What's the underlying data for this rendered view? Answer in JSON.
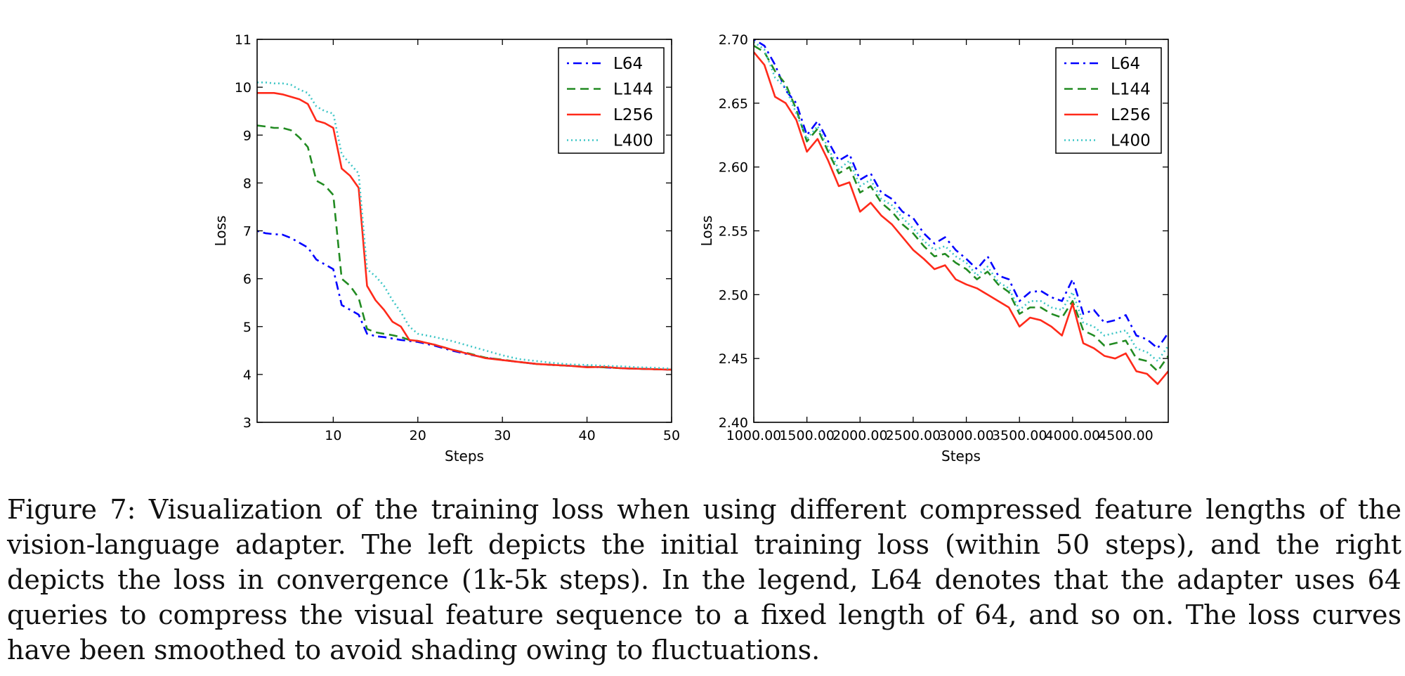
{
  "chart_data": [
    {
      "type": "line",
      "title": "",
      "xlabel": "Steps",
      "ylabel": "Loss",
      "xlim": [
        1,
        50
      ],
      "ylim": [
        3,
        11
      ],
      "xticks": [
        10,
        20,
        30,
        40,
        50
      ],
      "yticks": [
        3,
        4,
        5,
        6,
        7,
        8,
        9,
        10,
        11
      ],
      "grid": false,
      "legend": "top-right",
      "series": [
        {
          "name": "L64",
          "color": "#0000ff",
          "dash": "3,6,12,6",
          "x": [
            1,
            2,
            3,
            4,
            5,
            6,
            7,
            8,
            9,
            10,
            11,
            12,
            13,
            14,
            15,
            16,
            17,
            18,
            19,
            20,
            22,
            24,
            26,
            28,
            30,
            32,
            34,
            36,
            38,
            40,
            42,
            44,
            46,
            48,
            50
          ],
          "y": [
            7.0,
            6.95,
            6.93,
            6.92,
            6.85,
            6.75,
            6.65,
            6.4,
            6.3,
            6.2,
            5.45,
            5.35,
            5.25,
            4.85,
            4.8,
            4.78,
            4.75,
            4.72,
            4.7,
            4.68,
            4.6,
            4.5,
            4.42,
            4.35,
            4.3,
            4.26,
            4.22,
            4.2,
            4.18,
            4.16,
            4.15,
            4.13,
            4.12,
            4.11,
            4.1
          ]
        },
        {
          "name": "L144",
          "color": "#228b22",
          "dash": "12,7",
          "x": [
            1,
            2,
            3,
            4,
            5,
            6,
            7,
            8,
            9,
            10,
            11,
            12,
            13,
            14,
            15,
            16,
            17,
            18,
            19,
            20,
            22,
            24,
            26,
            28,
            30,
            32,
            34,
            36,
            38,
            40,
            42,
            44,
            46,
            48,
            50
          ],
          "y": [
            9.2,
            9.18,
            9.15,
            9.15,
            9.1,
            8.95,
            8.75,
            8.05,
            7.95,
            7.75,
            6.0,
            5.85,
            5.6,
            4.95,
            4.88,
            4.85,
            4.82,
            4.78,
            4.72,
            4.7,
            4.62,
            4.52,
            4.44,
            4.35,
            4.31,
            4.26,
            4.22,
            4.2,
            4.18,
            4.16,
            4.15,
            4.13,
            4.12,
            4.11,
            4.1
          ]
        },
        {
          "name": "L256",
          "color": "#ff2a1a",
          "dash": "",
          "x": [
            1,
            2,
            3,
            4,
            5,
            6,
            7,
            8,
            9,
            10,
            11,
            12,
            13,
            14,
            15,
            16,
            17,
            18,
            19,
            20,
            22,
            24,
            26,
            28,
            30,
            32,
            34,
            36,
            38,
            40,
            42,
            44,
            46,
            48,
            50
          ],
          "y": [
            9.88,
            9.88,
            9.88,
            9.85,
            9.8,
            9.75,
            9.65,
            9.3,
            9.25,
            9.15,
            8.3,
            8.15,
            7.9,
            5.85,
            5.55,
            5.35,
            5.1,
            5.0,
            4.72,
            4.7,
            4.62,
            4.52,
            4.43,
            4.34,
            4.3,
            4.26,
            4.22,
            4.2,
            4.18,
            4.15,
            4.16,
            4.13,
            4.12,
            4.11,
            4.1
          ]
        },
        {
          "name": "L400",
          "color": "#3ec6c6",
          "dash": "2,4",
          "x": [
            1,
            2,
            3,
            4,
            5,
            6,
            7,
            8,
            9,
            10,
            11,
            12,
            13,
            14,
            15,
            16,
            17,
            18,
            19,
            20,
            22,
            24,
            26,
            28,
            30,
            32,
            34,
            36,
            38,
            40,
            42,
            44,
            46,
            48,
            50
          ],
          "y": [
            10.1,
            10.1,
            10.08,
            10.08,
            10.05,
            9.95,
            9.88,
            9.6,
            9.5,
            9.45,
            8.6,
            8.4,
            8.2,
            6.2,
            6.05,
            5.85,
            5.55,
            5.3,
            5.0,
            4.85,
            4.78,
            4.7,
            4.6,
            4.5,
            4.4,
            4.32,
            4.28,
            4.24,
            4.21,
            4.2,
            4.18,
            4.17,
            4.15,
            4.14,
            4.12
          ]
        }
      ]
    },
    {
      "type": "line",
      "title": "",
      "xlabel": "Steps",
      "ylabel": "Loss",
      "xlim": [
        1000,
        4900
      ],
      "ylim": [
        2.4,
        2.7
      ],
      "xticks": [
        1000,
        1500,
        2000,
        2500,
        3000,
        3500,
        4000,
        4500
      ],
      "yticks": [
        2.4,
        2.45,
        2.5,
        2.55,
        2.6,
        2.65,
        2.7
      ],
      "grid": false,
      "legend": "top-right",
      "series": [
        {
          "name": "L64",
          "color": "#0000ff",
          "dash": "3,6,12,6",
          "x": [
            1000,
            1100,
            1200,
            1300,
            1400,
            1500,
            1600,
            1700,
            1800,
            1900,
            2000,
            2100,
            2200,
            2300,
            2400,
            2500,
            2600,
            2700,
            2800,
            2900,
            3000,
            3100,
            3200,
            3300,
            3400,
            3500,
            3600,
            3700,
            3800,
            3900,
            4000,
            4100,
            4200,
            4300,
            4400,
            4500,
            4600,
            4700,
            4800,
            4900
          ],
          "y": [
            2.7,
            2.695,
            2.68,
            2.66,
            2.65,
            2.625,
            2.636,
            2.62,
            2.605,
            2.61,
            2.59,
            2.595,
            2.58,
            2.575,
            2.565,
            2.56,
            2.548,
            2.54,
            2.545,
            2.535,
            2.528,
            2.52,
            2.53,
            2.515,
            2.512,
            2.495,
            2.502,
            2.503,
            2.498,
            2.495,
            2.512,
            2.485,
            2.488,
            2.478,
            2.48,
            2.484,
            2.468,
            2.465,
            2.458,
            2.47
          ]
        },
        {
          "name": "L144",
          "color": "#228b22",
          "dash": "12,7",
          "x": [
            1000,
            1100,
            1200,
            1300,
            1400,
            1500,
            1600,
            1700,
            1800,
            1900,
            2000,
            2100,
            2200,
            2300,
            2400,
            2500,
            2600,
            2700,
            2800,
            2900,
            3000,
            3100,
            3200,
            3300,
            3400,
            3500,
            3600,
            3700,
            3800,
            3900,
            4000,
            4100,
            4200,
            4300,
            4400,
            4500,
            4600,
            4700,
            4800,
            4900
          ],
          "y": [
            2.695,
            2.69,
            2.675,
            2.665,
            2.645,
            2.62,
            2.63,
            2.612,
            2.595,
            2.6,
            2.58,
            2.585,
            2.572,
            2.565,
            2.555,
            2.548,
            2.538,
            2.53,
            2.532,
            2.525,
            2.52,
            2.512,
            2.518,
            2.508,
            2.502,
            2.485,
            2.49,
            2.49,
            2.485,
            2.482,
            2.495,
            2.472,
            2.468,
            2.46,
            2.462,
            2.464,
            2.45,
            2.448,
            2.44,
            2.452
          ]
        },
        {
          "name": "L256",
          "color": "#ff2a1a",
          "dash": "",
          "x": [
            1000,
            1100,
            1200,
            1300,
            1400,
            1500,
            1600,
            1700,
            1800,
            1900,
            2000,
            2100,
            2200,
            2300,
            2400,
            2500,
            2600,
            2700,
            2800,
            2900,
            3000,
            3100,
            3200,
            3300,
            3400,
            3500,
            3600,
            3700,
            3800,
            3900,
            4000,
            4100,
            4200,
            4300,
            4400,
            4500,
            4600,
            4700,
            4800,
            4900
          ],
          "y": [
            2.69,
            2.68,
            2.655,
            2.65,
            2.637,
            2.612,
            2.622,
            2.605,
            2.585,
            2.588,
            2.565,
            2.572,
            2.562,
            2.555,
            2.545,
            2.535,
            2.528,
            2.52,
            2.523,
            2.512,
            2.508,
            2.505,
            2.5,
            2.495,
            2.49,
            2.475,
            2.482,
            2.48,
            2.475,
            2.468,
            2.493,
            2.462,
            2.458,
            2.452,
            2.45,
            2.454,
            2.44,
            2.438,
            2.43,
            2.44
          ]
        },
        {
          "name": "L400",
          "color": "#3ec6c6",
          "dash": "2,4",
          "x": [
            1000,
            1100,
            1200,
            1300,
            1400,
            1500,
            1600,
            1700,
            1800,
            1900,
            2000,
            2100,
            2200,
            2300,
            2400,
            2500,
            2600,
            2700,
            2800,
            2900,
            3000,
            3100,
            3200,
            3300,
            3400,
            3500,
            3600,
            3700,
            3800,
            3900,
            4000,
            4100,
            4200,
            4300,
            4400,
            4500,
            4600,
            4700,
            4800,
            4900
          ],
          "y": [
            2.698,
            2.692,
            2.67,
            2.662,
            2.642,
            2.622,
            2.632,
            2.615,
            2.598,
            2.605,
            2.585,
            2.59,
            2.575,
            2.57,
            2.56,
            2.552,
            2.542,
            2.535,
            2.538,
            2.53,
            2.525,
            2.515,
            2.522,
            2.51,
            2.505,
            2.488,
            2.495,
            2.495,
            2.49,
            2.488,
            2.502,
            2.478,
            2.475,
            2.468,
            2.47,
            2.472,
            2.458,
            2.455,
            2.448,
            2.46
          ]
        }
      ]
    }
  ],
  "caption": "Figure 7: Visualization of the training loss when using different compressed feature lengths of the vision-language adapter. The left depicts the initial training loss (within 50 steps), and the right depicts the loss in convergence (1k-5k steps). In the legend, L64 denotes that the adapter uses 64 queries to compress the visual feature sequence to a fixed length of 64, and so on. The loss curves have been smoothed to avoid shading owing to fluctuations."
}
